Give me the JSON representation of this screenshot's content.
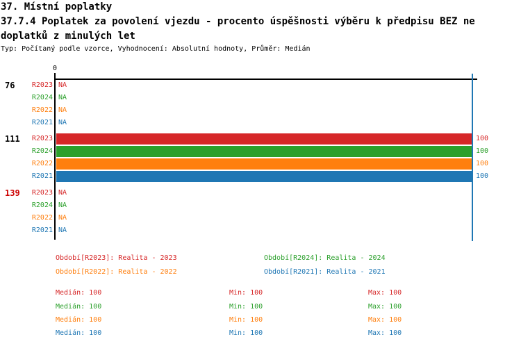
{
  "header": {
    "page_title": "37. Místní poplatky",
    "chart_title_line1": "37.7.4 Poplatek za povolení vjezdu - procento úspěšnosti výběru k předpisu BEZ ne",
    "chart_title_line2": "doplatků z minulých let",
    "meta": "Typ: Počítaný podle vzorce, Vyhodnocení: Absolutní hodnoty, Průměr: Medián"
  },
  "chart_data": {
    "type": "bar",
    "orientation": "horizontal",
    "value_axis": {
      "zero_label": "0",
      "max_marker_value": 100,
      "marker_line_color": "#1f77b4",
      "axis_color": "#000000"
    },
    "series_order": [
      "R2023",
      "R2024",
      "R2022",
      "R2021"
    ],
    "series_colors": {
      "R2023": "#d62728",
      "R2024": "#2ca02c",
      "R2022": "#ff7f0e",
      "R2021": "#1f77b4"
    },
    "groups": [
      {
        "label": "76",
        "label_color": "#000000",
        "rows": [
          {
            "series": "R2023",
            "value": null,
            "display": "NA"
          },
          {
            "series": "R2024",
            "value": null,
            "display": "NA"
          },
          {
            "series": "R2022",
            "value": null,
            "display": "NA"
          },
          {
            "series": "R2021",
            "value": null,
            "display": "NA"
          }
        ]
      },
      {
        "label": "111",
        "label_color": "#000000",
        "rows": [
          {
            "series": "R2023",
            "value": 100,
            "display": "100"
          },
          {
            "series": "R2024",
            "value": 100,
            "display": "100"
          },
          {
            "series": "R2022",
            "value": 100,
            "display": "100"
          },
          {
            "series": "R2021",
            "value": 100,
            "display": "100"
          }
        ]
      },
      {
        "label": "139",
        "label_color": "#cc0000",
        "rows": [
          {
            "series": "R2023",
            "value": null,
            "display": "NA"
          },
          {
            "series": "R2024",
            "value": null,
            "display": "NA"
          },
          {
            "series": "R2022",
            "value": null,
            "display": "NA"
          },
          {
            "series": "R2021",
            "value": null,
            "display": "NA"
          }
        ]
      }
    ],
    "legend": [
      {
        "series": "R2023",
        "label": "Období[R2023]: Realita - 2023"
      },
      {
        "series": "R2024",
        "label": "Období[R2024]: Realita - 2024"
      },
      {
        "series": "R2022",
        "label": "Období[R2022]: Realita - 2022"
      },
      {
        "series": "R2021",
        "label": "Období[R2021]: Realita - 2021"
      }
    ],
    "stats": {
      "labels": {
        "median": "Medián",
        "min": "Min",
        "max": "Max"
      },
      "rows": [
        {
          "series": "R2023",
          "median": 100,
          "min": 100,
          "max": 100
        },
        {
          "series": "R2024",
          "median": 100,
          "min": 100,
          "max": 100
        },
        {
          "series": "R2022",
          "median": 100,
          "min": 100,
          "max": 100
        },
        {
          "series": "R2021",
          "median": 100,
          "min": 100,
          "max": 100
        }
      ]
    }
  }
}
